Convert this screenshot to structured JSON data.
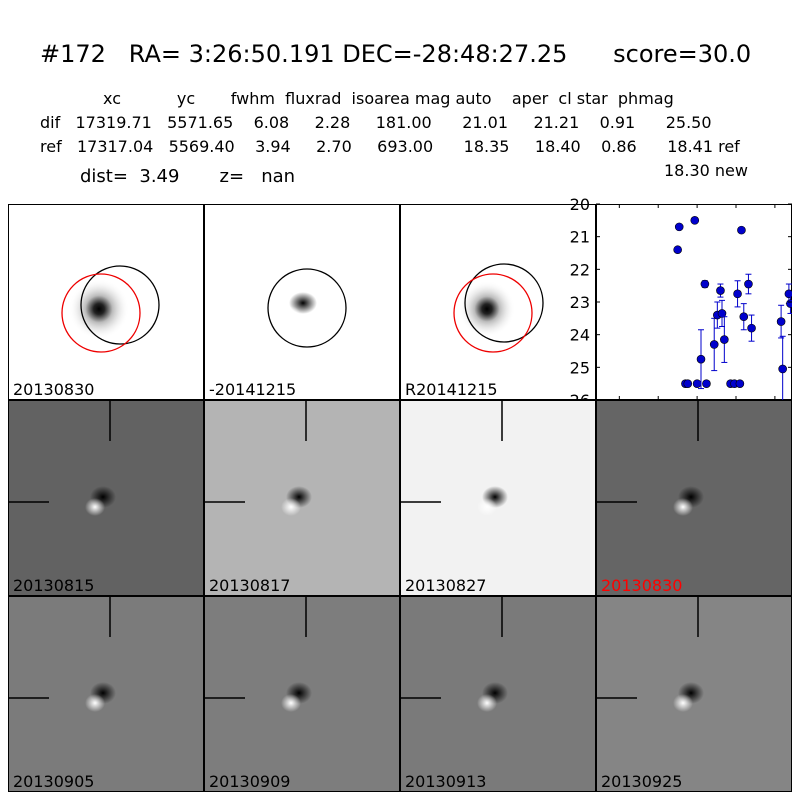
{
  "title": "#172   RA= 3:26:50.191 DEC=-28:48:27.25      score=30.0",
  "table": {
    "header": "xc           yc       fwhm  fluxrad  isoarea mag auto    aper  cl star  phmag",
    "dif": "dif   17319.71   5571.65    6.08     2.28     181.00      21.01     21.21    0.91      25.50",
    "ref": "ref   17317.04   5569.40    3.94     2.70     693.00      18.35     18.40    0.86      18.41 ref",
    "new": "18.30 new"
  },
  "dist_line": "dist=  3.49       z=   nan",
  "top_panels": [
    {
      "label": "20130830",
      "bg": "#fdfdfd",
      "circles": [
        "black",
        "red"
      ]
    },
    {
      "label": "-20141215",
      "bg": "#6f6f6f",
      "circles": [
        "black"
      ]
    },
    {
      "label": "R20141215",
      "bg": "#fdfdfd",
      "circles": [
        "black",
        "red"
      ]
    }
  ],
  "grid_panels": [
    {
      "label": "20130815",
      "bg": "#626262",
      "label_color": "#000000"
    },
    {
      "label": "20130817",
      "bg": "#b4b4b4",
      "label_color": "#000000"
    },
    {
      "label": "20130827",
      "bg": "#f2f2f2",
      "label_color": "#000000"
    },
    {
      "label": "20130830",
      "bg": "#656565",
      "label_color": "#ff0000"
    },
    {
      "label": "20130905",
      "bg": "#7b7b7b",
      "label_color": "#000000"
    },
    {
      "label": "20130909",
      "bg": "#7d7d7d",
      "label_color": "#000000"
    },
    {
      "label": "20130913",
      "bg": "#7a7a7a",
      "label_color": "#000000"
    },
    {
      "label": "20130925",
      "bg": "#858585",
      "label_color": "#000000"
    }
  ],
  "chart_data": {
    "type": "scatter",
    "title": "",
    "xlabel": "",
    "ylabel": "",
    "xlim": [
      -130,
      122
    ],
    "ylim": [
      26,
      20
    ],
    "x_ticks": [
      -100,
      -50,
      0,
      50,
      100
    ],
    "y_ticks": [
      20,
      21,
      22,
      23,
      24,
      25,
      26
    ],
    "marker_color": "#0000cc",
    "points": [
      {
        "x": -25,
        "y": 21.4,
        "err": 0
      },
      {
        "x": -23,
        "y": 20.7,
        "err": 0
      },
      {
        "x": -15,
        "y": 25.5,
        "err": 0
      },
      {
        "x": -12,
        "y": 25.5,
        "err": 0
      },
      {
        "x": -3,
        "y": 20.5,
        "err": 0
      },
      {
        "x": 0,
        "y": 25.5,
        "err": 0
      },
      {
        "x": 5,
        "y": 24.75,
        "err": 0.9
      },
      {
        "x": 10,
        "y": 22.45,
        "err": 0.1
      },
      {
        "x": 12,
        "y": 25.5,
        "err": 0
      },
      {
        "x": 22,
        "y": 24.3,
        "err": 0.8
      },
      {
        "x": 26,
        "y": 23.4,
        "err": 0.4
      },
      {
        "x": 30,
        "y": 22.65,
        "err": 0.2
      },
      {
        "x": 32,
        "y": 23.35,
        "err": 0.4
      },
      {
        "x": 35,
        "y": 24.15,
        "err": 0.7
      },
      {
        "x": 43,
        "y": 25.5,
        "err": 0
      },
      {
        "x": 48,
        "y": 25.5,
        "err": 0
      },
      {
        "x": 52,
        "y": 22.75,
        "err": 0.4
      },
      {
        "x": 55,
        "y": 25.5,
        "err": 0
      },
      {
        "x": 57,
        "y": 20.8,
        "err": 0
      },
      {
        "x": 60,
        "y": 23.45,
        "err": 0.4
      },
      {
        "x": 66,
        "y": 22.45,
        "err": 0.3
      },
      {
        "x": 70,
        "y": 23.8,
        "err": 0.4
      },
      {
        "x": 108,
        "y": 23.6,
        "err": 0.5
      },
      {
        "x": 110,
        "y": 25.05,
        "err": 1.0
      },
      {
        "x": 118,
        "y": 22.75,
        "err": 0.3
      },
      {
        "x": 120,
        "y": 23.05,
        "err": 0.3
      }
    ]
  }
}
